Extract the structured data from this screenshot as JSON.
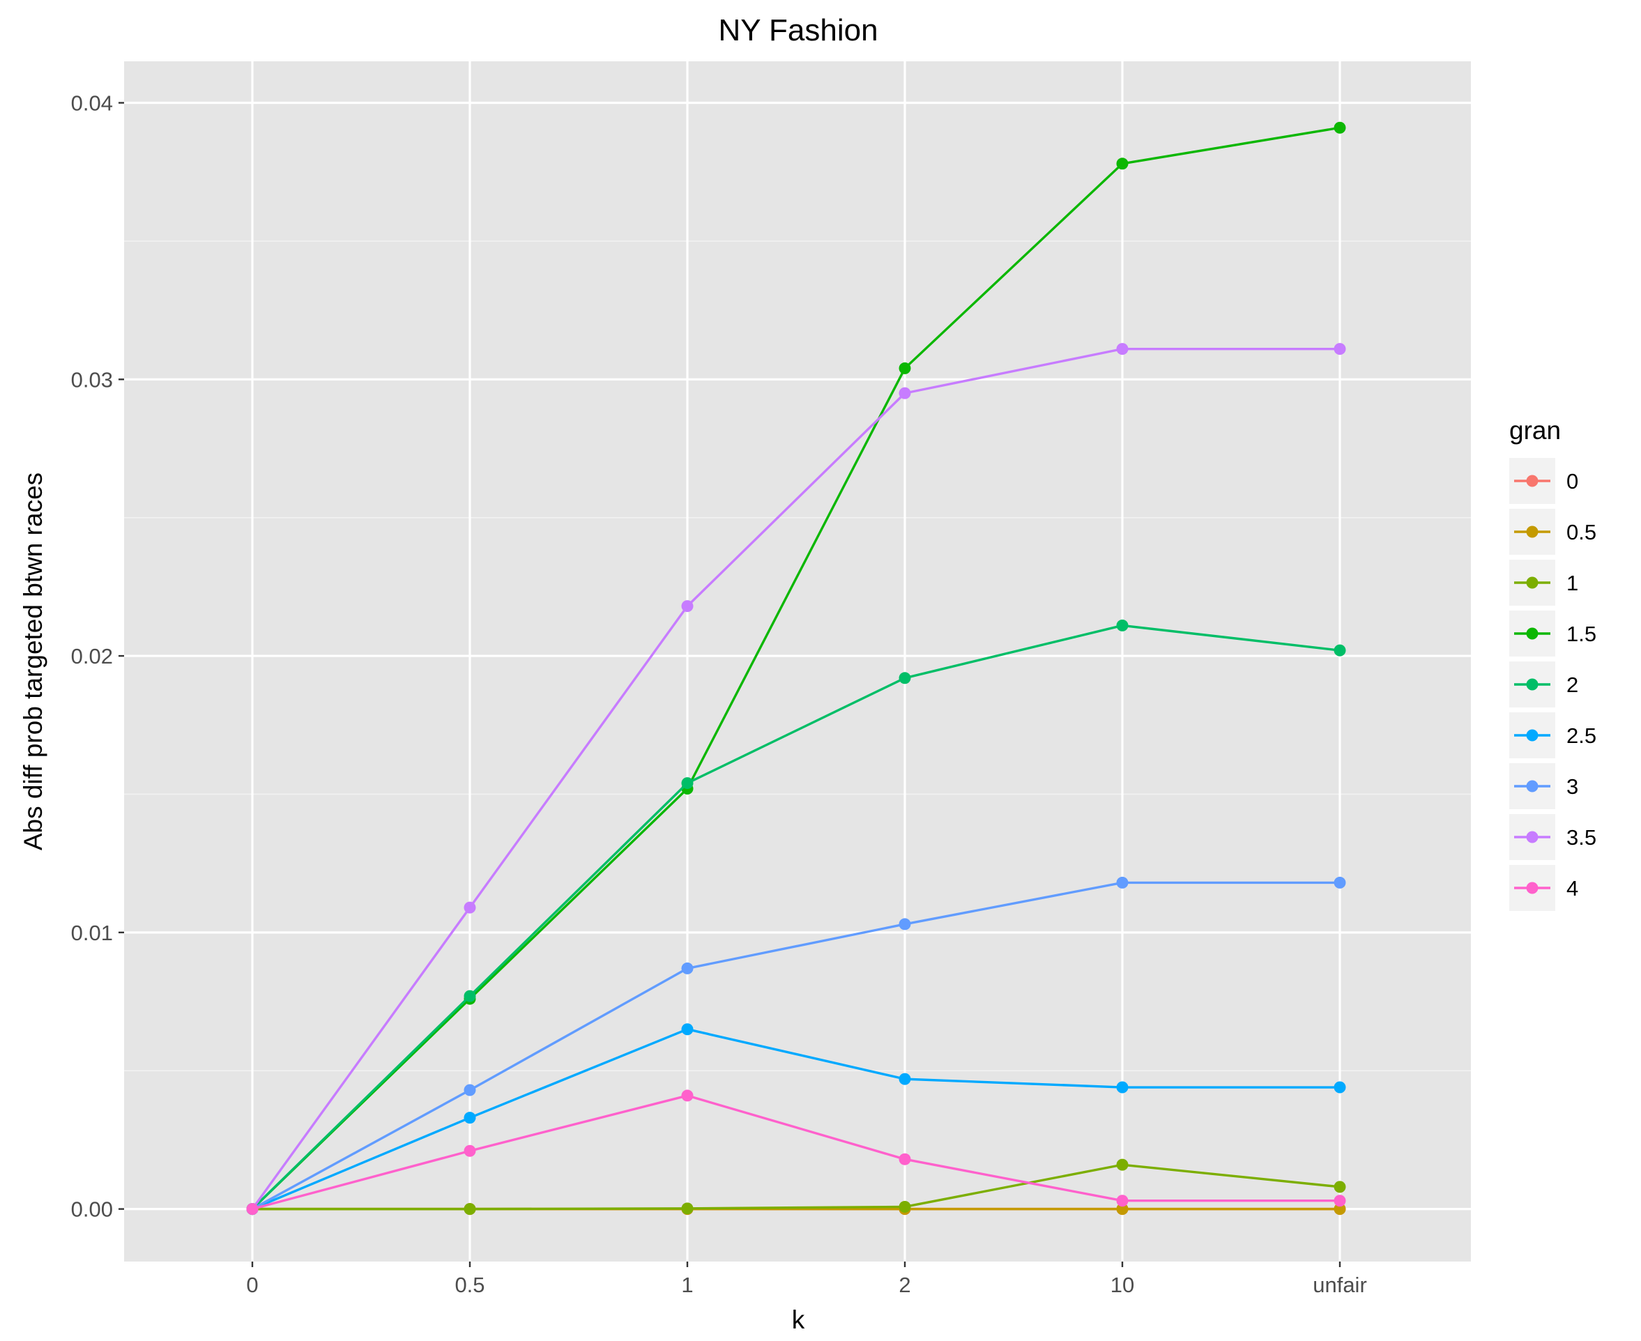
{
  "chart_data": {
    "type": "line",
    "title": "NY Fashion",
    "xlabel": "k",
    "ylabel": "Abs diff prob targeted btwn races",
    "categories": [
      "0",
      "0.5",
      "1",
      "2",
      "10",
      "unfair"
    ],
    "y_ticks": [
      "0.00",
      "0.01",
      "0.02",
      "0.03",
      "0.04"
    ],
    "ylim": [
      -0.0019,
      0.0415
    ],
    "grid": true,
    "legend_title": "gran",
    "legend_position": "right",
    "series": [
      {
        "name": "0",
        "color": "#F8766D",
        "values": [
          0,
          0,
          0,
          0,
          0,
          0
        ]
      },
      {
        "name": "0.5",
        "color": "#C49A00",
        "values": [
          0,
          0,
          0,
          0,
          0,
          0
        ]
      },
      {
        "name": "1",
        "color": "#7CAE00",
        "values": [
          0,
          0,
          2e-05,
          8e-05,
          0.0016,
          0.0008
        ]
      },
      {
        "name": "1.5",
        "color": "#0CB702",
        "values": [
          0,
          0.0076,
          0.0152,
          0.0304,
          0.0378,
          0.0391
        ]
      },
      {
        "name": "2",
        "color": "#00BE67",
        "values": [
          0,
          0.0077,
          0.0154,
          0.0192,
          0.0211,
          0.0202
        ]
      },
      {
        "name": "2.5",
        "color": "#00A9FF",
        "values": [
          0,
          0.0033,
          0.0065,
          0.0047,
          0.0044,
          0.0044
        ]
      },
      {
        "name": "3",
        "color": "#619CFF",
        "values": [
          0,
          0.0043,
          0.0087,
          0.0103,
          0.0118,
          0.0118
        ]
      },
      {
        "name": "3.5",
        "color": "#C77CFF",
        "values": [
          0,
          0.0109,
          0.0218,
          0.0295,
          0.0311,
          0.0311
        ]
      },
      {
        "name": "4",
        "color": "#FF61CC",
        "values": [
          0,
          0.0021,
          0.0041,
          0.0018,
          0.0003,
          0.0003
        ]
      }
    ]
  }
}
